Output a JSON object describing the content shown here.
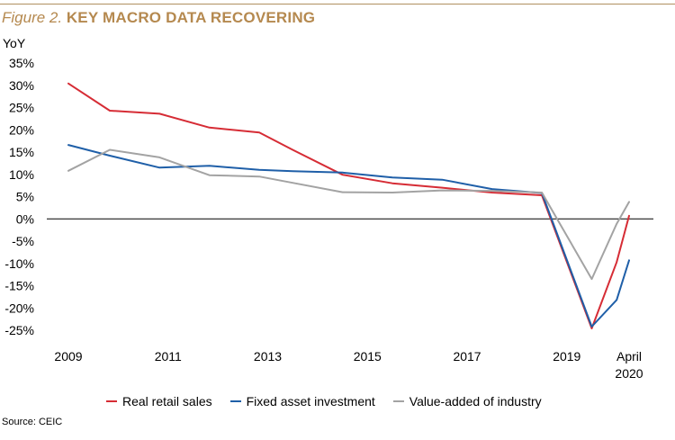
{
  "header": {
    "figure_label": "Figure 2.",
    "title": "KEY MACRO DATA RECOVERING"
  },
  "source": "Source: CEIC",
  "colors": {
    "accent": "#b5894f",
    "rule": "#b09060"
  },
  "chart_data": {
    "type": "line",
    "ylabel": "YoY",
    "ylim": [
      -25,
      35
    ],
    "yticks": [
      "35%",
      "30%",
      "25%",
      "20%",
      "15%",
      "10%",
      "5%",
      "0%",
      "-5%",
      "-10%",
      "-15%",
      "-20%",
      "-25%"
    ],
    "ytick_values": [
      35,
      30,
      25,
      20,
      15,
      10,
      5,
      0,
      -5,
      -10,
      -15,
      -20,
      -25
    ],
    "xlim": [
      2009,
      2020.25
    ],
    "xticks": [
      {
        "x": 2009,
        "lines": [
          "2009"
        ]
      },
      {
        "x": 2011,
        "lines": [
          "2011"
        ]
      },
      {
        "x": 2013,
        "lines": [
          "2013"
        ]
      },
      {
        "x": 2015,
        "lines": [
          "2015"
        ]
      },
      {
        "x": 2017,
        "lines": [
          "2017"
        ]
      },
      {
        "x": 2019,
        "lines": [
          "2019"
        ]
      },
      {
        "x": 2020.25,
        "lines": [
          "April",
          "2020"
        ]
      }
    ],
    "grid": false,
    "zero_line": true,
    "legend_position": "bottom",
    "series": [
      {
        "name": "Real retail sales",
        "color": "#d62c35",
        "x": [
          2009,
          2009.83,
          2010.83,
          2011.83,
          2012.83,
          2013.5,
          2014.5,
          2015.5,
          2016.5,
          2017.5,
          2018.5,
          2019.5,
          2020.0,
          2020.25
        ],
        "y": [
          30.4,
          24.3,
          23.6,
          20.5,
          19.4,
          15.5,
          9.9,
          8.0,
          7.0,
          5.9,
          5.3,
          -24.6,
          -9.7,
          0.7
        ]
      },
      {
        "name": "Fixed asset investment",
        "color": "#1f5fa8",
        "x": [
          2009,
          2009.83,
          2010.83,
          2011.83,
          2012.83,
          2013.5,
          2014.5,
          2015.5,
          2016.5,
          2017.5,
          2018.5,
          2019.5,
          2020.0,
          2020.25
        ],
        "y": [
          16.6,
          14.2,
          11.5,
          11.9,
          11.0,
          10.7,
          10.4,
          9.3,
          8.8,
          6.7,
          5.8,
          -24.2,
          -18.2,
          -9.3
        ]
      },
      {
        "name": "Value-added of industry",
        "color": "#a3a3a3",
        "x": [
          2009,
          2009.83,
          2010.83,
          2011.83,
          2012.83,
          2013.5,
          2014.5,
          2015.5,
          2016.5,
          2017.5,
          2018.5,
          2019.5,
          2020.0,
          2020.25
        ],
        "y": [
          10.8,
          15.5,
          13.8,
          9.8,
          9.5,
          8.1,
          6.0,
          5.9,
          6.4,
          6.3,
          5.9,
          -13.5,
          -1.1,
          3.8
        ]
      }
    ]
  }
}
